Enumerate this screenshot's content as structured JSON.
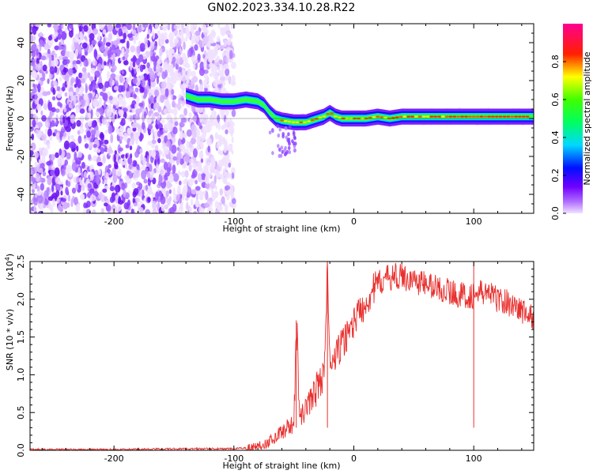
{
  "chart_data": [
    {
      "type": "heatmap",
      "title": "GN02.2023.334.10.28.R22",
      "xlabel": "Height of straight line (km)",
      "ylabel": "Frequency (Hz)",
      "xlim": [
        -270,
        150
      ],
      "ylim": [
        -50,
        50
      ],
      "x_ticks": [
        -200,
        -100,
        0,
        100
      ],
      "y_ticks": [
        40,
        20,
        0,
        -20,
        -40
      ],
      "colorbar": {
        "label": "Normalized spectral amplitude",
        "range": [
          0,
          1
        ],
        "ticks": [
          "0.0",
          "0.2",
          "0.4",
          "0.6",
          "0.8"
        ],
        "colors": [
          "#e9d6ff",
          "#7a00ff",
          "#0000ff",
          "#00e5ff",
          "#00ff00",
          "#ffff00",
          "#ff0000",
          "#ff0090"
        ]
      },
      "noise_region_x": [
        -270,
        -100
      ],
      "ridge": {
        "x": [
          -140,
          -130,
          -120,
          -110,
          -100,
          -90,
          -80,
          -75,
          -70,
          -65,
          -60,
          -50,
          -40,
          -30,
          -25,
          -20,
          -15,
          -10,
          0,
          10,
          20,
          30,
          40,
          60,
          80,
          100,
          120,
          150
        ],
        "y": [
          12,
          10,
          10,
          9,
          9,
          10,
          9,
          7,
          3,
          0,
          -1,
          -2,
          -2,
          0,
          1,
          3,
          1,
          0,
          0,
          0,
          1,
          0,
          1,
          1,
          1,
          1,
          1,
          1
        ]
      }
    },
    {
      "type": "line",
      "xlabel": "Height of straight line (km)",
      "ylabel": "SNR (10 * v/v)",
      "y_multiplier": "(x10",
      "y_multiplier_exp": "4",
      "xlim": [
        -270,
        150
      ],
      "ylim": [
        0,
        2.5
      ],
      "x_ticks": [
        -200,
        -100,
        0,
        100
      ],
      "y_ticks": [
        "0.0",
        "0.5",
        "1.0",
        "1.5",
        "2.0",
        "2.5"
      ],
      "color": "#e8302e",
      "series": [
        {
          "x": [
            -270,
            -200,
            -150,
            -100,
            -85,
            -75,
            -70,
            -65,
            -60,
            -55,
            -50,
            -48,
            -45,
            -40,
            -35,
            -30,
            -25,
            -22,
            -20,
            -15,
            -10,
            -5,
            0,
            5,
            10,
            15,
            20,
            25,
            30,
            40,
            50,
            60,
            70,
            80,
            90,
            100,
            110,
            120,
            130,
            140,
            150
          ],
          "y": [
            0.01,
            0.01,
            0.02,
            0.02,
            0.04,
            0.08,
            0.12,
            0.18,
            0.25,
            0.3,
            0.35,
            1.7,
            0.4,
            0.55,
            0.7,
            0.85,
            1.0,
            2.4,
            1.1,
            1.25,
            1.4,
            1.55,
            1.7,
            1.85,
            1.95,
            2.1,
            2.2,
            2.25,
            2.3,
            2.3,
            2.25,
            2.2,
            2.15,
            2.1,
            2.05,
            2.05,
            2.1,
            2.0,
            1.95,
            1.85,
            1.75
          ]
        }
      ]
    }
  ]
}
